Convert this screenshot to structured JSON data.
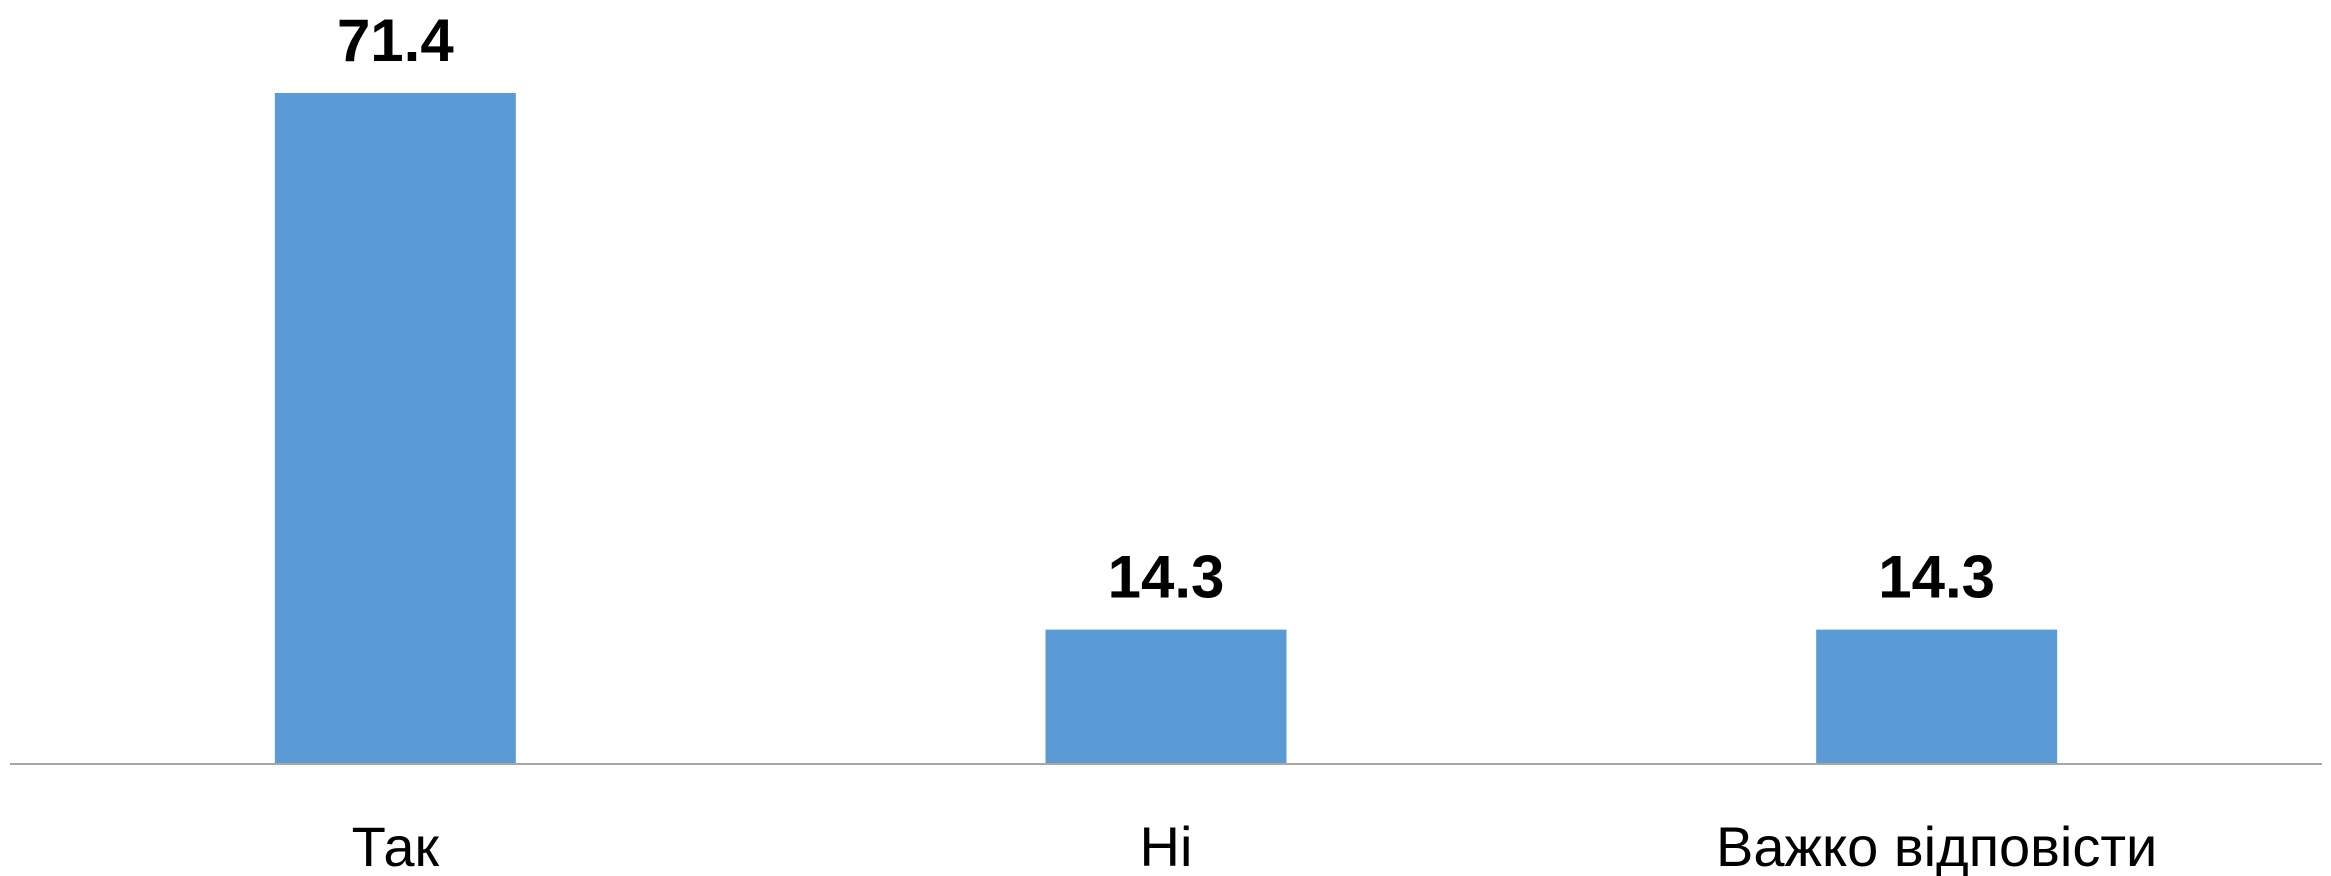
{
  "chart_data": {
    "type": "bar",
    "categories": [
      "Так",
      "Ні",
      "Важко відповісти"
    ],
    "values": [
      71.4,
      14.3,
      14.3
    ],
    "data_labels": [
      "71.4",
      "14.3",
      "14.3"
    ],
    "title": "",
    "xlabel": "",
    "ylabel": "",
    "ylim": [
      0,
      71.4
    ],
    "grid": false,
    "legend": "none",
    "bar_color": "#5B9BD5",
    "axis_color": "#A6A6A6"
  }
}
